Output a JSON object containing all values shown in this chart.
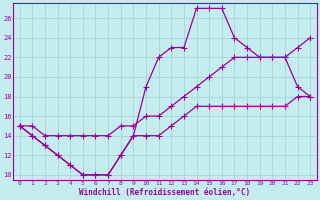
{
  "title": "",
  "xlabel": "Windchill (Refroidissement éolien,°C)",
  "ylabel": "",
  "background_color": "#c5edf0",
  "line_color": "#990099",
  "grid_color": "#a8d8dc",
  "xlim": [
    -0.5,
    23.5
  ],
  "ylim": [
    9.5,
    27.5
  ],
  "xticks": [
    0,
    1,
    2,
    3,
    4,
    5,
    6,
    7,
    8,
    9,
    10,
    11,
    12,
    13,
    14,
    15,
    16,
    17,
    18,
    19,
    20,
    21,
    22,
    23
  ],
  "yticks": [
    10,
    12,
    14,
    16,
    18,
    20,
    22,
    24,
    26
  ],
  "line1_x": [
    0,
    1,
    2,
    3,
    4,
    5,
    6,
    7,
    8,
    9,
    10,
    11,
    12,
    13,
    14,
    15,
    16,
    17,
    18,
    19,
    20,
    21,
    22,
    23
  ],
  "line1_y": [
    15,
    14,
    13,
    12,
    11,
    10,
    10,
    10,
    12,
    14,
    19,
    22,
    23,
    23,
    27,
    27,
    27,
    24,
    23,
    22,
    22,
    22,
    19,
    18
  ],
  "line2_x": [
    0,
    1,
    2,
    3,
    4,
    5,
    6,
    7,
    8,
    9,
    10,
    11,
    12,
    13,
    14,
    15,
    16,
    17,
    18,
    19,
    20,
    21,
    22,
    23
  ],
  "line2_y": [
    15,
    15,
    14,
    14,
    14,
    14,
    14,
    14,
    15,
    15,
    16,
    16,
    17,
    18,
    19,
    20,
    21,
    22,
    22,
    22,
    22,
    22,
    23,
    24
  ],
  "line3_x": [
    0,
    1,
    2,
    3,
    4,
    5,
    6,
    7,
    8,
    9,
    10,
    11,
    12,
    13,
    14,
    15,
    16,
    17,
    18,
    19,
    20,
    21,
    22,
    23
  ],
  "line3_y": [
    15,
    14,
    13,
    12,
    11,
    10,
    10,
    10,
    12,
    14,
    14,
    14,
    15,
    16,
    17,
    17,
    17,
    17,
    17,
    17,
    17,
    17,
    18,
    18
  ]
}
